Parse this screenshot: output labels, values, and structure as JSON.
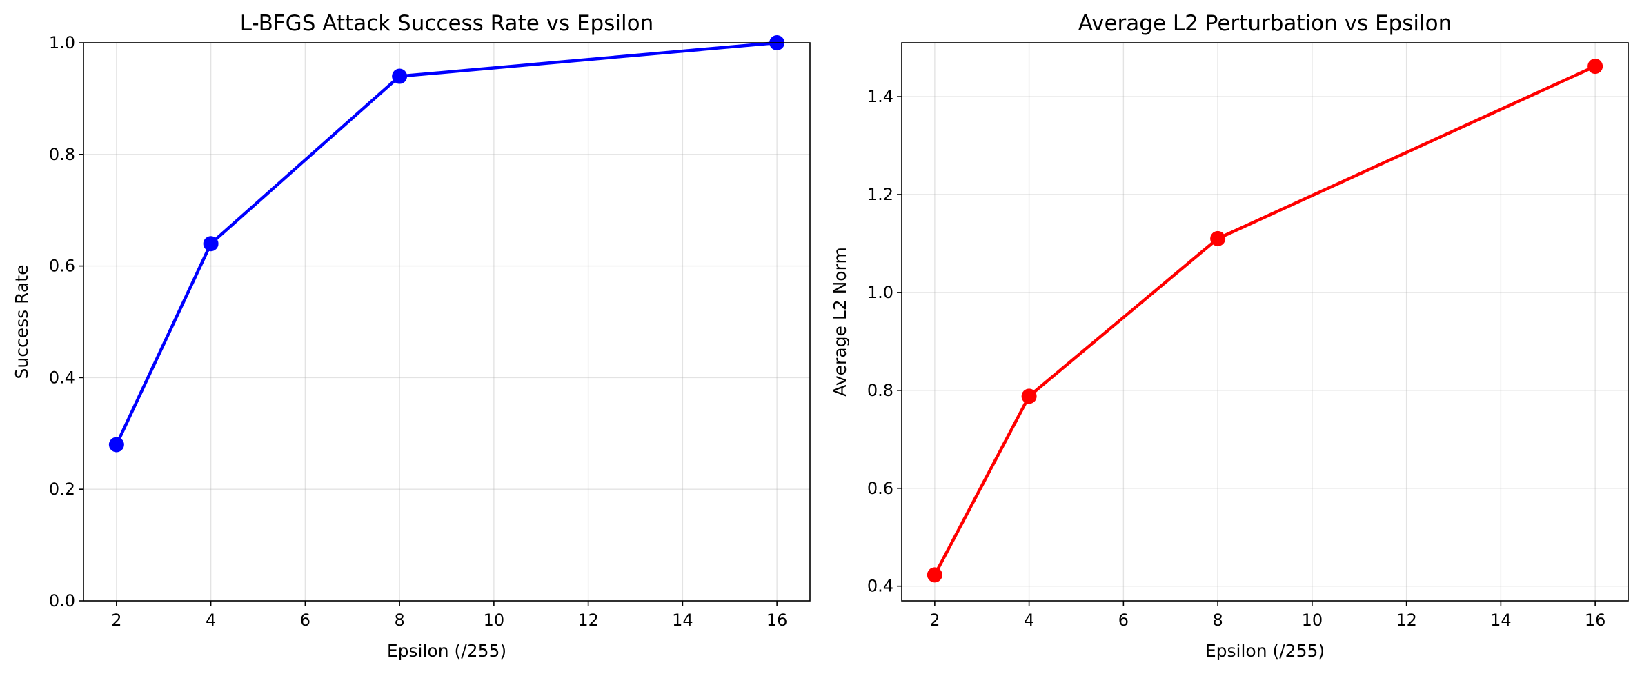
{
  "chart_data": [
    {
      "type": "line",
      "title": "L-BFGS Attack Success Rate vs Epsilon",
      "xlabel": "Epsilon (/255)",
      "ylabel": "Success Rate",
      "xlim": [
        1.3,
        16.7
      ],
      "ylim": [
        0.0,
        1.0
      ],
      "xticks": [
        2,
        4,
        6,
        8,
        10,
        12,
        14,
        16
      ],
      "yticks": [
        0.0,
        0.2,
        0.4,
        0.6,
        0.8,
        1.0
      ],
      "ytick_labels": [
        "0.0",
        "0.2",
        "0.4",
        "0.6",
        "0.8",
        "1.0"
      ],
      "grid": true,
      "color": "#0000ff",
      "marker": "circle",
      "x": [
        2,
        4,
        8,
        16
      ],
      "y": [
        0.28,
        0.64,
        0.94,
        1.0
      ]
    },
    {
      "type": "line",
      "title": "Average L2 Perturbation vs Epsilon",
      "xlabel": "Epsilon (/255)",
      "ylabel": "Average L2 Norm",
      "xlim": [
        1.3,
        16.7
      ],
      "ylim": [
        0.37,
        1.51
      ],
      "xticks": [
        2,
        4,
        6,
        8,
        10,
        12,
        14,
        16
      ],
      "yticks": [
        0.4,
        0.6,
        0.8,
        1.0,
        1.2,
        1.4
      ],
      "ytick_labels": [
        "0.4",
        "0.6",
        "0.8",
        "1.0",
        "1.2",
        "1.4"
      ],
      "grid": true,
      "color": "#ff0000",
      "marker": "circle",
      "x": [
        2,
        4,
        8,
        16
      ],
      "y": [
        0.423,
        0.788,
        1.11,
        1.462
      ]
    }
  ]
}
